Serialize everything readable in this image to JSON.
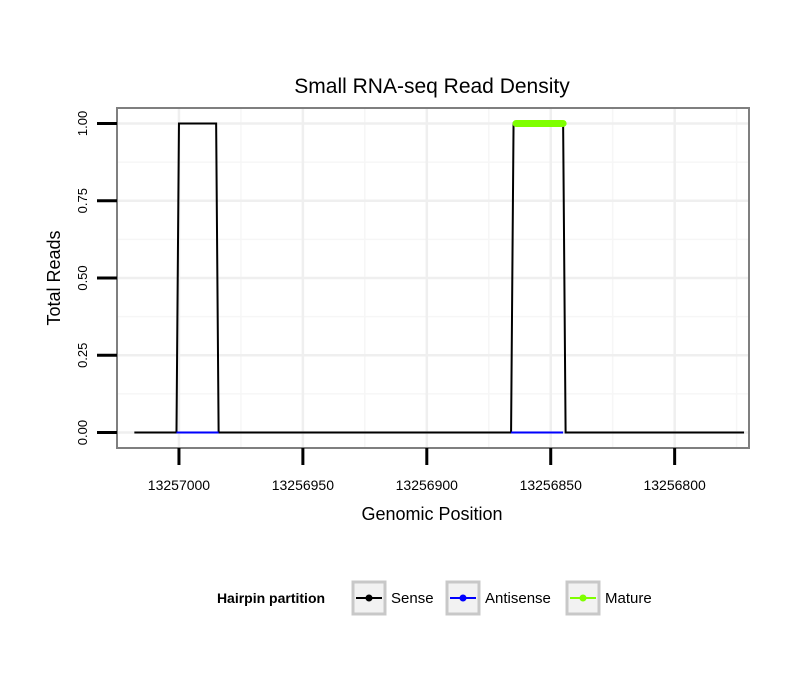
{
  "chart_data": {
    "type": "line",
    "title": "Small RNA-seq Read Density",
    "xlabel": "Genomic Position",
    "ylabel": "Total Reads",
    "x_reversed": true,
    "xlim": [
      13257025,
      13256770
    ],
    "ylim": [
      -0.05,
      1.05
    ],
    "x_ticks": [
      13257000,
      13256950,
      13256900,
      13256850,
      13256800
    ],
    "x_tick_labels": [
      "13257000",
      "13256950",
      "13256900",
      "13256850",
      "13256800"
    ],
    "y_ticks": [
      0,
      0.25,
      0.5,
      0.75,
      1
    ],
    "y_tick_labels": [
      "0.00",
      "0.25",
      "0.50",
      "0.75",
      "1.00"
    ],
    "grid": true,
    "series": [
      {
        "name": "Sense",
        "color": "#000000",
        "x": [
          13257018,
          13257001,
          13257000,
          13256985,
          13256984,
          13256866,
          13256865,
          13256845,
          13256844,
          13256772
        ],
        "y": [
          0,
          0,
          1,
          1,
          0,
          0,
          1,
          1,
          0,
          0
        ]
      },
      {
        "name": "Antisense",
        "color": "#0000ff",
        "x": [
          13257001,
          13256984,
          13256866,
          13256845
        ],
        "y": [
          0,
          0,
          0,
          0
        ]
      },
      {
        "name": "Mature",
        "color": "#7fff00",
        "x": [
          13256864,
          13256845
        ],
        "y": [
          1,
          1
        ]
      }
    ],
    "legend": {
      "title": "Hairpin partition",
      "position": "bottom",
      "entries": [
        "Sense",
        "Antisense",
        "Mature"
      ]
    }
  }
}
